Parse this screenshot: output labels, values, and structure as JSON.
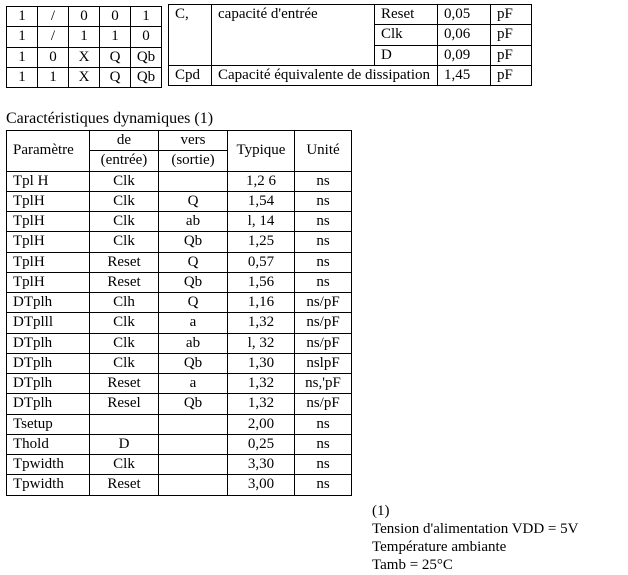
{
  "truth": {
    "rows": [
      [
        "1",
        "/",
        "0",
        "0",
        "1"
      ],
      [
        "1",
        "/",
        "1",
        "1",
        "0"
      ],
      [
        "1",
        "0",
        "X",
        "Q",
        "Qb"
      ],
      [
        "1",
        "1",
        "X",
        "Q",
        "Qb"
      ]
    ]
  },
  "cap": {
    "sym": "C,",
    "label": "capacité d'entrée",
    "rows": [
      {
        "name": "Reset",
        "val": "0,05",
        "unit": "pF"
      },
      {
        "name": "Clk",
        "val": "0,06",
        "unit": "pF"
      },
      {
        "name": "D",
        "val": "0,09",
        "unit": "pF"
      }
    ],
    "cpd_sym": "Cpd",
    "cpd_label": "Capacité équivalente de dissipation",
    "cpd_val": "1,45",
    "cpd_unit": "pF"
  },
  "dyn": {
    "title": "Caractéristiques dynamiques (1)",
    "headers": {
      "p": "Paramètre",
      "c2a": "de",
      "c2b": "(entrée)",
      "c3a": "vers",
      "c3b": "(sortie)",
      "c4": "Typique",
      "c5": "Unité"
    },
    "rows": [
      {
        "p": "Tpl H",
        "c2": "Clk",
        "c3": "",
        "c4": "1,2 6",
        "c5": "ns"
      },
      {
        "p": "TplH",
        "c2": "Clk",
        "c3": "Q",
        "c4": "1,54",
        "c5": "ns"
      },
      {
        "p": "TplH",
        "c2": "Clk",
        "c3": "ab",
        "c4": "l, 14",
        "c5": "ns"
      },
      {
        "p": "TplH",
        "c2": "Clk",
        "c3": "Qb",
        "c4": "1,25",
        "c5": "ns"
      },
      {
        "p": "TplH",
        "c2": "Reset",
        "c3": "Q",
        "c4": "0,57",
        "c5": "ns"
      },
      {
        "p": "TplH",
        "c2": "Reset",
        "c3": "Qb",
        "c4": "1,56",
        "c5": "ns"
      },
      {
        "p": "DTplh",
        "c2": "Clh",
        "c3": "Q",
        "c4": "1,16",
        "c5": "ns/pF"
      },
      {
        "p": "DTplll",
        "c2": "Clk",
        "c3": "a",
        "c4": "1,32",
        "c5": "ns/pF"
      },
      {
        "p": "DTplh",
        "c2": "Clk",
        "c3": "ab",
        "c4": "l, 32",
        "c5": "ns/pF"
      },
      {
        "p": "DTplh",
        "c2": "Clk",
        "c3": "Qb",
        "c4": "1,30",
        "c5": "nslpF"
      },
      {
        "p": "DTplh",
        "c2": "Reset",
        "c3": "a",
        "c4": "1,32",
        "c5": "ns,'pF"
      },
      {
        "p": "DTplh",
        "c2": "Resel",
        "c3": "Qb",
        "c4": "1,32",
        "c5": "ns/pF"
      },
      {
        "p": "Tsetup",
        "c2": "",
        "c3": "",
        "c4": "2,00",
        "c5": "ns"
      },
      {
        "p": "Thold",
        "c2": "D",
        "c3": "",
        "c4": "0,25",
        "c5": "ns"
      },
      {
        "p": "Tpwidth",
        "c2": "Clk",
        "c3": "",
        "c4": "3,30",
        "c5": "ns"
      },
      {
        "p": "Tpwidth",
        "c2": "Reset",
        "c3": "",
        "c4": "3,00",
        "c5": "ns"
      }
    ]
  },
  "notes": {
    "n1": "(1)",
    "n2": "Tension d'alimentation VDD = 5V",
    "n3": "Température ambiante",
    "n4": "Tamb = 25°C"
  }
}
